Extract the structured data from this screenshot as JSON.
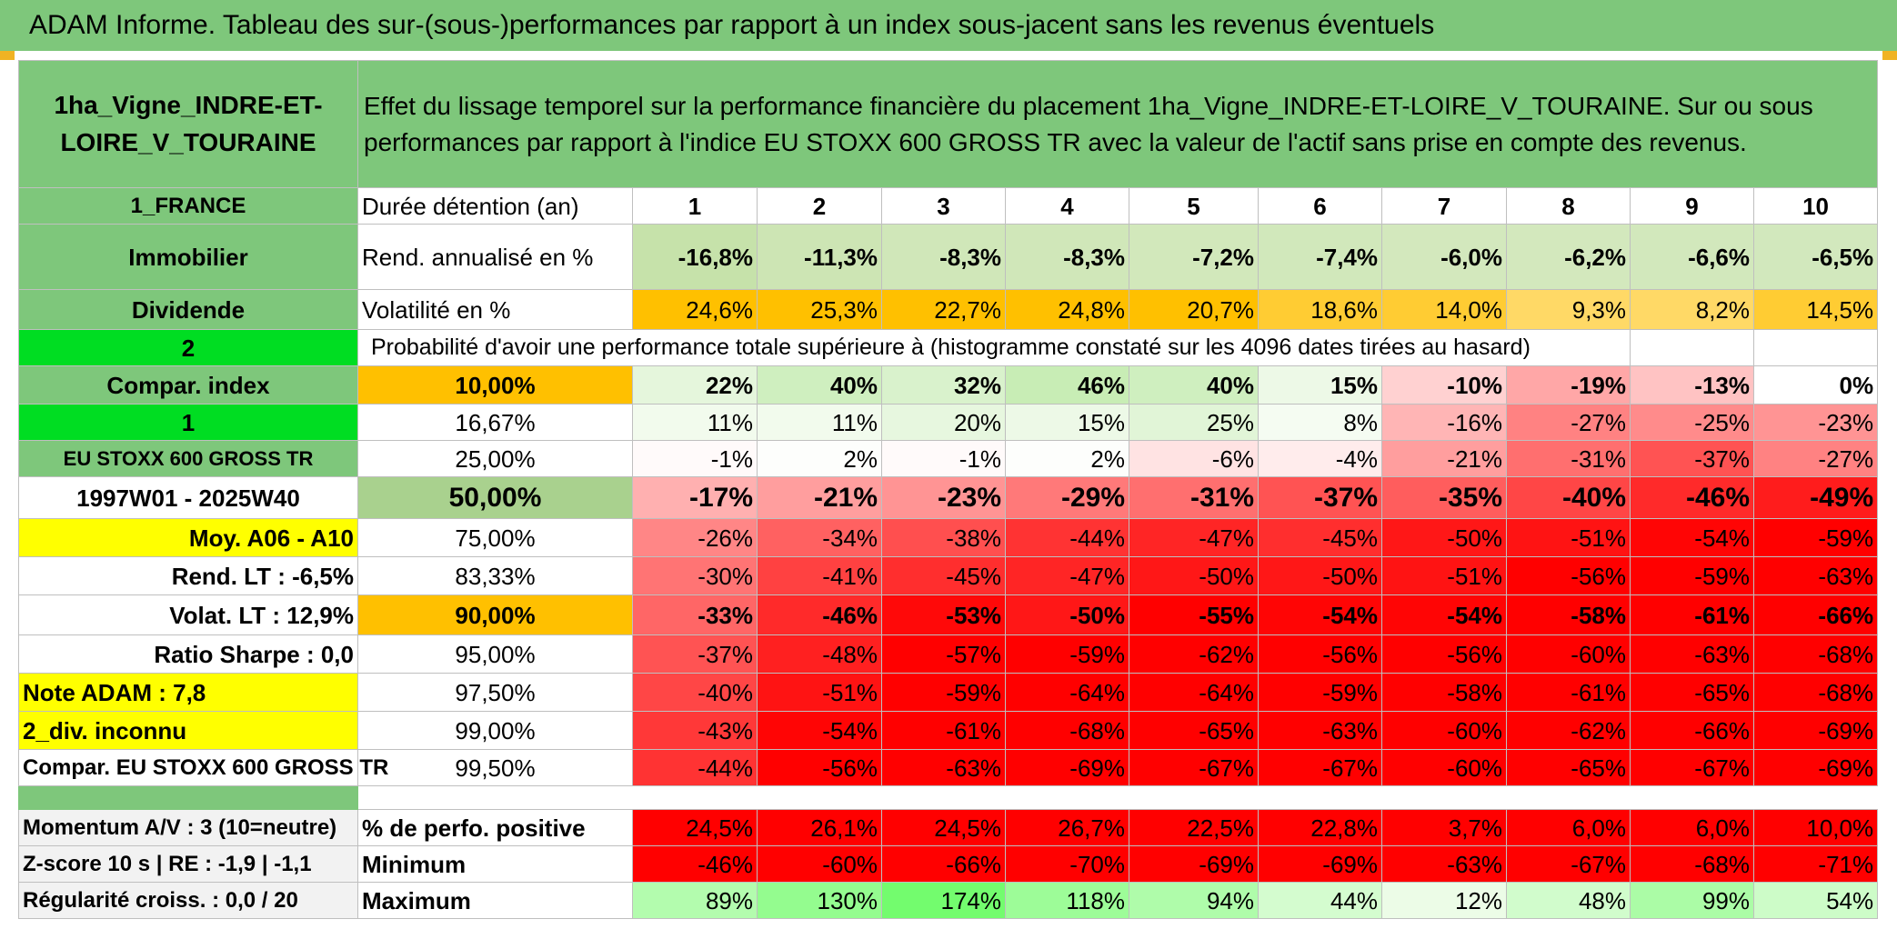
{
  "title": "ADAM Informe. Tableau des sur-(sous-)performances par rapport à un index sous-jacent sans les revenus éventuels",
  "colors": {
    "green": "#7ec77b",
    "bright_green": "#00dd22",
    "yellow": "#ffff00",
    "orange": "#ffc000",
    "red_text": "#e02020"
  },
  "header": {
    "asset_name": "1ha_Vigne_INDRE-ET-LOIRE_V_TOURAINE",
    "description": "Effet du lissage temporel sur la performance financière du placement 1ha_Vigne_INDRE-ET-LOIRE_V_TOURAINE. Sur ou sous performances par rapport à l'indice EU STOXX 600 GROSS TR avec la valeur de l'actif sans prise en compte des revenus."
  },
  "left_panel": {
    "country": "1_FRANCE",
    "category": "Immobilier",
    "type": "Dividende",
    "number_2": "2",
    "compar_index": "Compar. index",
    "number_1": "1",
    "index_name": "EU STOXX 600 GROSS TR",
    "period": "1997W01 - 2025W40",
    "moy": "Moy. A06 - A10",
    "rend_lt": "Rend. LT :   -6,5%",
    "volat_lt": "Volat. LT :   12,9%",
    "sharpe": "Ratio Sharpe :    0,0",
    "note": "Note ADAM : 7,8",
    "div": "2_div. inconnu",
    "compar_full": "Compar. EU STOXX 600 GROSS TR",
    "momentum": "Momentum A/V : 3 (10=neutre)",
    "zscore": "Z-score 10 s | RE : -1,9 | -1,1",
    "regularite": "Régularité croiss. : 0,0 / 20"
  },
  "labels": {
    "duree": "Durée détention (an)",
    "rend": "Rend. annualisé en %",
    "volat": "Volatilité en %",
    "proba": "Probabilité d'avoir une performance totale supérieure à (histogramme constaté sur les 4096 dates tirées au hasard)",
    "perfo_pos": "% de perfo. positive",
    "minimum": "Minimum",
    "maximum": "Maximum"
  },
  "years": [
    "1",
    "2",
    "3",
    "4",
    "5",
    "6",
    "7",
    "8",
    "9",
    "10"
  ],
  "rend": [
    "-16,8%",
    "-11,3%",
    "-8,3%",
    "-8,3%",
    "-7,2%",
    "-7,4%",
    "-6,0%",
    "-6,2%",
    "-6,6%",
    "-6,5%"
  ],
  "volat": [
    "24,6%",
    "25,3%",
    "22,7%",
    "24,8%",
    "20,7%",
    "18,6%",
    "14,0%",
    "9,3%",
    "8,2%",
    "14,5%"
  ],
  "percentiles": [
    {
      "p": "10,00%",
      "v": [
        "22%",
        "40%",
        "32%",
        "46%",
        "40%",
        "15%",
        "-10%",
        "-19%",
        "-13%",
        "0%"
      ]
    },
    {
      "p": "16,67%",
      "v": [
        "11%",
        "11%",
        "20%",
        "15%",
        "25%",
        "8%",
        "-16%",
        "-27%",
        "-25%",
        "-23%"
      ]
    },
    {
      "p": "25,00%",
      "v": [
        "-1%",
        "2%",
        "-1%",
        "2%",
        "-6%",
        "-4%",
        "-21%",
        "-31%",
        "-37%",
        "-27%"
      ]
    },
    {
      "p": "50,00%",
      "v": [
        "-17%",
        "-21%",
        "-23%",
        "-29%",
        "-31%",
        "-37%",
        "-35%",
        "-40%",
        "-46%",
        "-49%"
      ]
    },
    {
      "p": "75,00%",
      "v": [
        "-26%",
        "-34%",
        "-38%",
        "-44%",
        "-47%",
        "-45%",
        "-50%",
        "-51%",
        "-54%",
        "-59%"
      ]
    },
    {
      "p": "83,33%",
      "v": [
        "-30%",
        "-41%",
        "-45%",
        "-47%",
        "-50%",
        "-50%",
        "-51%",
        "-56%",
        "-59%",
        "-63%"
      ]
    },
    {
      "p": "90,00%",
      "v": [
        "-33%",
        "-46%",
        "-53%",
        "-50%",
        "-55%",
        "-54%",
        "-54%",
        "-58%",
        "-61%",
        "-66%"
      ]
    },
    {
      "p": "95,00%",
      "v": [
        "-37%",
        "-48%",
        "-57%",
        "-59%",
        "-62%",
        "-56%",
        "-56%",
        "-60%",
        "-63%",
        "-68%"
      ]
    },
    {
      "p": "97,50%",
      "v": [
        "-40%",
        "-51%",
        "-59%",
        "-64%",
        "-64%",
        "-59%",
        "-58%",
        "-61%",
        "-65%",
        "-68%"
      ]
    },
    {
      "p": "99,00%",
      "v": [
        "-43%",
        "-54%",
        "-61%",
        "-68%",
        "-65%",
        "-63%",
        "-60%",
        "-62%",
        "-66%",
        "-69%"
      ]
    },
    {
      "p": "99,50%",
      "v": [
        "-44%",
        "-56%",
        "-63%",
        "-69%",
        "-67%",
        "-67%",
        "-60%",
        "-65%",
        "-67%",
        "-69%"
      ]
    }
  ],
  "perfo_pos": [
    "24,5%",
    "26,1%",
    "24,5%",
    "26,7%",
    "22,5%",
    "22,8%",
    "3,7%",
    "6,0%",
    "6,0%",
    "10,0%"
  ],
  "minimum": [
    "-46%",
    "-60%",
    "-66%",
    "-70%",
    "-69%",
    "-69%",
    "-63%",
    "-67%",
    "-68%",
    "-71%"
  ],
  "maximum": [
    "89%",
    "130%",
    "174%",
    "118%",
    "94%",
    "44%",
    "12%",
    "48%",
    "99%",
    "54%"
  ]
}
